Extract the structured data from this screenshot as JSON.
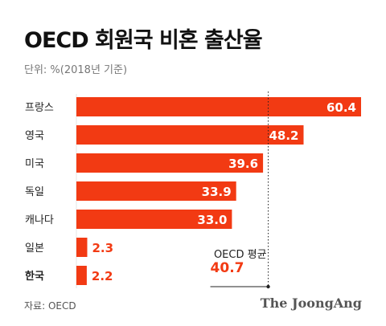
{
  "header": {
    "title": "OECD 회원국 비혼 출산율",
    "unit": "단위: %(2018년 기준)"
  },
  "footer": {
    "source": "자료: OECD",
    "brand": "The JoongAng"
  },
  "colors": {
    "bar": "#F23A13",
    "avg_line": "#222222"
  },
  "chart_data": {
    "type": "bar",
    "orientation": "horizontal",
    "categories": [
      "프랑스",
      "영국",
      "미국",
      "독일",
      "캐나다",
      "일본",
      "한국"
    ],
    "values": [
      60.4,
      48.2,
      39.6,
      33.9,
      33.0,
      2.3,
      2.2
    ],
    "value_labels": [
      "60.4",
      "48.2",
      "39.6",
      "33.9",
      "33.0",
      "2.3",
      "2.2"
    ],
    "highlight_category": "한국",
    "reference_line": {
      "label": "OECD 평균",
      "value": 40.7,
      "value_label": "40.7"
    },
    "xlim": [
      0,
      60.4
    ],
    "grid": false,
    "legend": "none"
  }
}
